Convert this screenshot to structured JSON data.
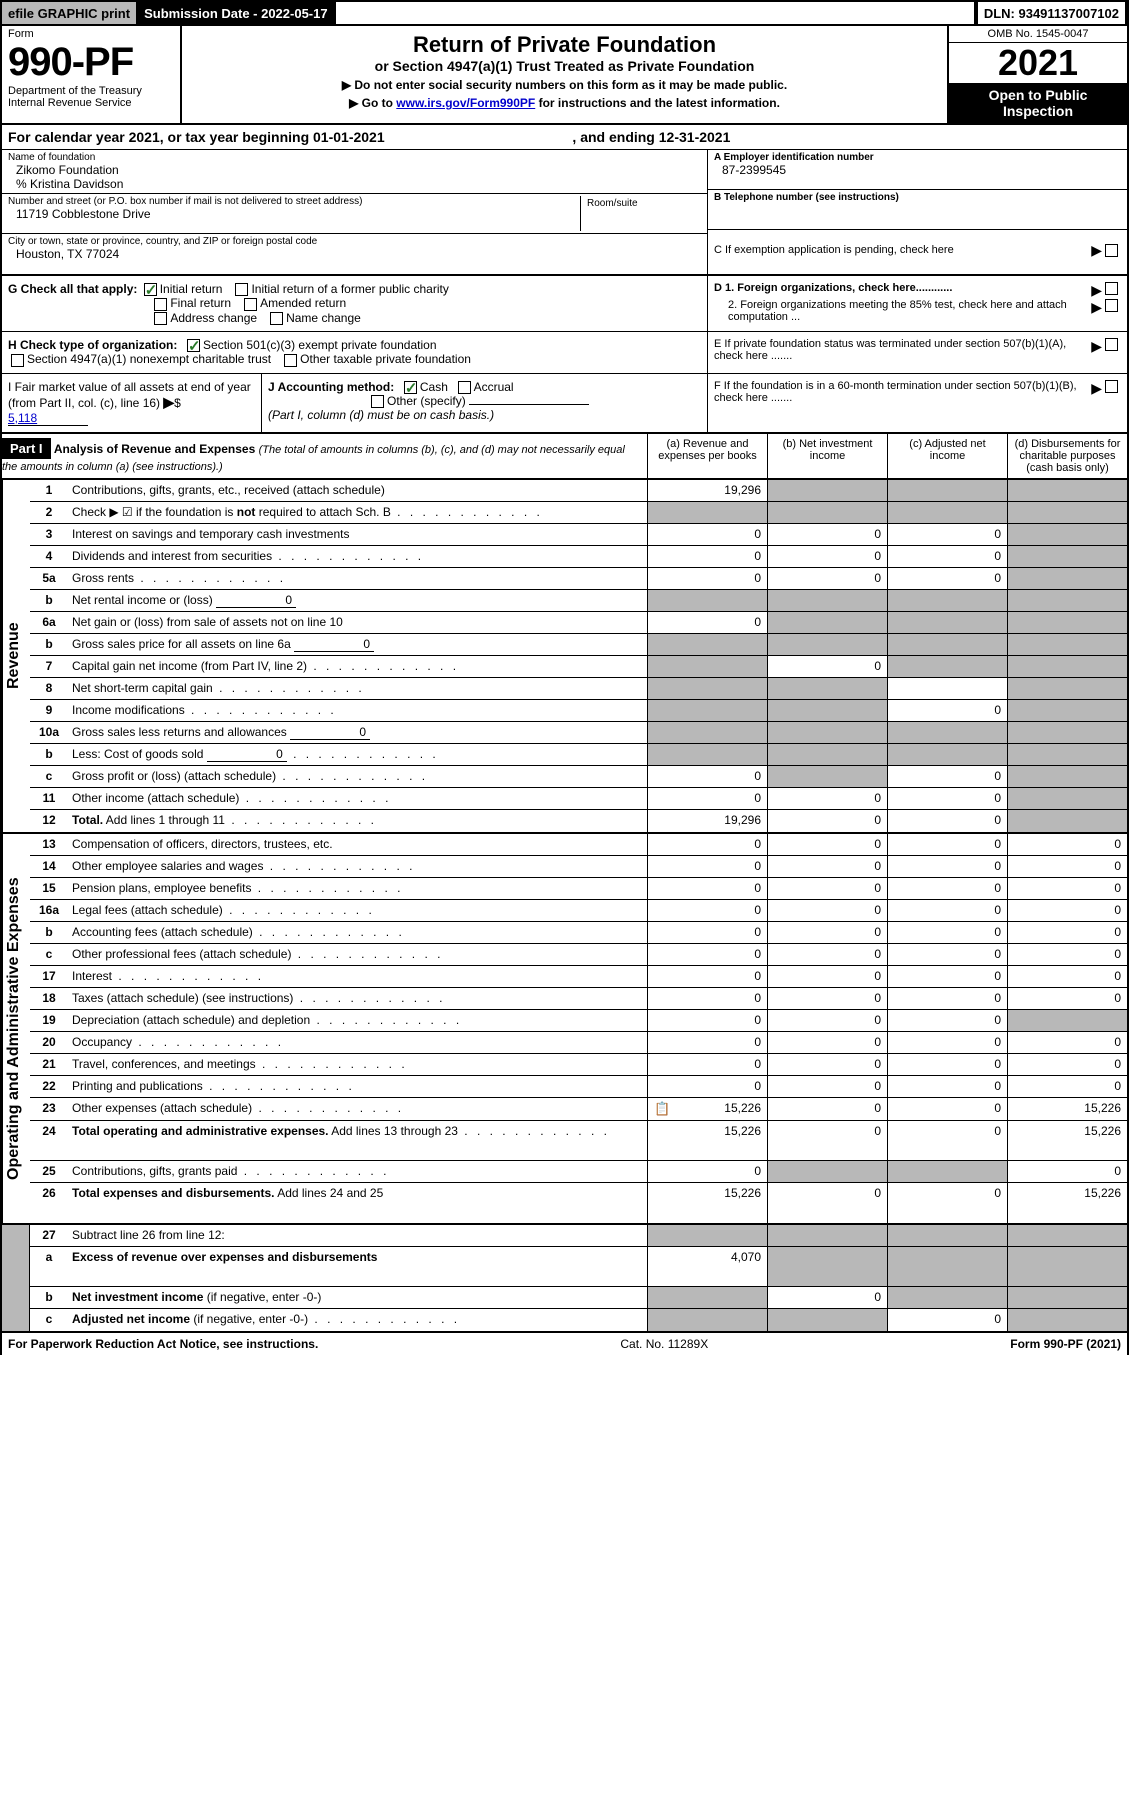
{
  "topbar": {
    "efile": "efile GRAPHIC print",
    "submission_label": "Submission Date - 2022-05-17",
    "dln_label": "DLN: 93491137007102"
  },
  "header": {
    "form_label": "Form",
    "form_no": "990-PF",
    "dept": "Department of the Treasury",
    "irs": "Internal Revenue Service",
    "title": "Return of Private Foundation",
    "subtitle": "or Section 4947(a)(1) Trust Treated as Private Foundation",
    "note1": "▶ Do not enter social security numbers on this form as it may be made public.",
    "note2_pre": "▶ Go to ",
    "note2_link": "www.irs.gov/Form990PF",
    "note2_post": " for instructions and the latest information.",
    "omb": "OMB No. 1545-0047",
    "year": "2021",
    "open": "Open to Public Inspection"
  },
  "calendar": {
    "text_pre": "For calendar year 2021, or tax year beginning ",
    "begin": "01-01-2021",
    "mid": " , and ending ",
    "end": "12-31-2021"
  },
  "info": {
    "name_label": "Name of foundation",
    "name": "Zikomo Foundation",
    "care_of": "% Kristina Davidson",
    "addr_label": "Number and street (or P.O. box number if mail is not delivered to street address)",
    "addr": "11719 Cobblestone Drive",
    "room_label": "Room/suite",
    "city_label": "City or town, state or province, country, and ZIP or foreign postal code",
    "city": "Houston, TX  77024",
    "ein_label": "A Employer identification number",
    "ein": "87-2399545",
    "phone_label": "B Telephone number (see instructions)",
    "c_label": "C If exemption application is pending, check here",
    "d1_label": "D 1. Foreign organizations, check here............",
    "d2_label": "2. Foreign organizations meeting the 85% test, check here and attach computation ...",
    "e_label": "E  If private foundation status was terminated under section 507(b)(1)(A), check here .......",
    "f_label": "F  If the foundation is in a 60-month termination under section 507(b)(1)(B), check here .......",
    "g_label": "G Check all that apply:",
    "g_opts": [
      "Initial return",
      "Initial return of a former public charity",
      "Final return",
      "Amended return",
      "Address change",
      "Name change"
    ],
    "h_label": "H Check type of organization:",
    "h_opts": [
      "Section 501(c)(3) exempt private foundation",
      "Section 4947(a)(1) nonexempt charitable trust",
      "Other taxable private foundation"
    ],
    "i_label": "I Fair market value of all assets at end of year (from Part II, col. (c), line 16)",
    "i_value": "5,118",
    "j_label": "J Accounting method:",
    "j_opts": [
      "Cash",
      "Accrual",
      "Other (specify)"
    ],
    "j_note": "(Part I, column (d) must be on cash basis.)"
  },
  "part1": {
    "label": "Part I",
    "title": "Analysis of Revenue and Expenses",
    "title_note": "(The total of amounts in columns (b), (c), and (d) may not necessarily equal the amounts in column (a) (see instructions).)",
    "cols": {
      "a": "(a)   Revenue and expenses per books",
      "b": "(b)   Net investment income",
      "c": "(c)   Adjusted net income",
      "d": "(d)   Disbursements for charitable purposes (cash basis only)"
    }
  },
  "sections": {
    "revenue": "Revenue",
    "expenses": "Operating and Administrative Expenses"
  },
  "rows": [
    {
      "n": "1",
      "label": "Contributions, gifts, grants, etc., received (attach schedule)",
      "a": "19,296",
      "b": "shaded",
      "c": "shaded",
      "d": "shaded"
    },
    {
      "n": "2",
      "label": "Check ▶ ☑ if the foundation is <b>not</b> required to attach Sch. B",
      "a": "shaded",
      "b": "shaded",
      "c": "shaded",
      "d": "shaded",
      "dots": true
    },
    {
      "n": "3",
      "label": "Interest on savings and temporary cash investments",
      "a": "0",
      "b": "0",
      "c": "0",
      "d": "shaded"
    },
    {
      "n": "4",
      "label": "Dividends and interest from securities",
      "a": "0",
      "b": "0",
      "c": "0",
      "d": "shaded",
      "dots": true
    },
    {
      "n": "5a",
      "label": "Gross rents",
      "a": "0",
      "b": "0",
      "c": "0",
      "d": "shaded",
      "dots": true
    },
    {
      "n": "b",
      "label": "Net rental income or (loss)",
      "inline": "0",
      "a": "shaded",
      "b": "shaded",
      "c": "shaded",
      "d": "shaded"
    },
    {
      "n": "6a",
      "label": "Net gain or (loss) from sale of assets not on line 10",
      "a": "0",
      "b": "shaded",
      "c": "shaded",
      "d": "shaded"
    },
    {
      "n": "b",
      "label": "Gross sales price for all assets on line 6a",
      "inline": "0",
      "a": "shaded",
      "b": "shaded",
      "c": "shaded",
      "d": "shaded"
    },
    {
      "n": "7",
      "label": "Capital gain net income (from Part IV, line 2)",
      "a": "shaded",
      "b": "0",
      "c": "shaded",
      "d": "shaded",
      "dots": true
    },
    {
      "n": "8",
      "label": "Net short-term capital gain",
      "a": "shaded",
      "b": "shaded",
      "c": "",
      "d": "shaded",
      "dots": true
    },
    {
      "n": "9",
      "label": "Income modifications",
      "a": "shaded",
      "b": "shaded",
      "c": "0",
      "d": "shaded",
      "dots": true
    },
    {
      "n": "10a",
      "label": "Gross sales less returns and allowances",
      "inline": "0",
      "a": "shaded",
      "b": "shaded",
      "c": "shaded",
      "d": "shaded"
    },
    {
      "n": "b",
      "label": "Less: Cost of goods sold",
      "inline": "0",
      "a": "shaded",
      "b": "shaded",
      "c": "shaded",
      "d": "shaded",
      "dots": true
    },
    {
      "n": "c",
      "label": "Gross profit or (loss) (attach schedule)",
      "a": "0",
      "b": "shaded",
      "c": "0",
      "d": "shaded",
      "dots": true
    },
    {
      "n": "11",
      "label": "Other income (attach schedule)",
      "a": "0",
      "b": "0",
      "c": "0",
      "d": "shaded",
      "dots": true
    },
    {
      "n": "12",
      "label": "<b>Total.</b> Add lines 1 through 11",
      "a": "19,296",
      "b": "0",
      "c": "0",
      "d": "shaded",
      "dots": true
    }
  ],
  "exp_rows": [
    {
      "n": "13",
      "label": "Compensation of officers, directors, trustees, etc.",
      "a": "0",
      "b": "0",
      "c": "0",
      "d": "0"
    },
    {
      "n": "14",
      "label": "Other employee salaries and wages",
      "a": "0",
      "b": "0",
      "c": "0",
      "d": "0",
      "dots": true
    },
    {
      "n": "15",
      "label": "Pension plans, employee benefits",
      "a": "0",
      "b": "0",
      "c": "0",
      "d": "0",
      "dots": true
    },
    {
      "n": "16a",
      "label": "Legal fees (attach schedule)",
      "a": "0",
      "b": "0",
      "c": "0",
      "d": "0",
      "dots": true
    },
    {
      "n": "b",
      "label": "Accounting fees (attach schedule)",
      "a": "0",
      "b": "0",
      "c": "0",
      "d": "0",
      "dots": true
    },
    {
      "n": "c",
      "label": "Other professional fees (attach schedule)",
      "a": "0",
      "b": "0",
      "c": "0",
      "d": "0",
      "dots": true
    },
    {
      "n": "17",
      "label": "Interest",
      "a": "0",
      "b": "0",
      "c": "0",
      "d": "0",
      "dots": true
    },
    {
      "n": "18",
      "label": "Taxes (attach schedule) (see instructions)",
      "a": "0",
      "b": "0",
      "c": "0",
      "d": "0",
      "dots": true
    },
    {
      "n": "19",
      "label": "Depreciation (attach schedule) and depletion",
      "a": "0",
      "b": "0",
      "c": "0",
      "d": "shaded",
      "dots": true
    },
    {
      "n": "20",
      "label": "Occupancy",
      "a": "0",
      "b": "0",
      "c": "0",
      "d": "0",
      "dots": true
    },
    {
      "n": "21",
      "label": "Travel, conferences, and meetings",
      "a": "0",
      "b": "0",
      "c": "0",
      "d": "0",
      "dots": true
    },
    {
      "n": "22",
      "label": "Printing and publications",
      "a": "0",
      "b": "0",
      "c": "0",
      "d": "0",
      "dots": true
    },
    {
      "n": "23",
      "label": "Other expenses (attach schedule)",
      "icon": "📋",
      "a": "15,226",
      "b": "0",
      "c": "0",
      "d": "15,226",
      "dots": true
    },
    {
      "n": "24",
      "label": "<b>Total operating and administrative expenses.</b> Add lines 13 through 23",
      "a": "15,226",
      "b": "0",
      "c": "0",
      "d": "15,226",
      "dots": true,
      "tall": true
    },
    {
      "n": "25",
      "label": "Contributions, gifts, grants paid",
      "a": "0",
      "b": "shaded",
      "c": "shaded",
      "d": "0",
      "dots": true
    },
    {
      "n": "26",
      "label": "<b>Total expenses and disbursements.</b> Add lines 24 and 25",
      "a": "15,226",
      "b": "0",
      "c": "0",
      "d": "15,226",
      "tall": true
    }
  ],
  "bottom_rows": [
    {
      "n": "27",
      "label": "Subtract line 26 from line 12:",
      "a": "shaded",
      "b": "shaded",
      "c": "shaded",
      "d": "shaded"
    },
    {
      "n": "a",
      "label": "<b>Excess of revenue over expenses and disbursements</b>",
      "a": "4,070",
      "b": "shaded",
      "c": "shaded",
      "d": "shaded",
      "tall": true
    },
    {
      "n": "b",
      "label": "<b>Net investment income</b> (if negative, enter -0-)",
      "a": "shaded",
      "b": "0",
      "c": "shaded",
      "d": "shaded"
    },
    {
      "n": "c",
      "label": "<b>Adjusted net income</b> (if negative, enter -0-)",
      "a": "shaded",
      "b": "shaded",
      "c": "0",
      "d": "shaded",
      "dots": true
    }
  ],
  "footer": {
    "left": "For Paperwork Reduction Act Notice, see instructions.",
    "mid": "Cat. No. 11289X",
    "right": "Form 990-PF (2021)"
  },
  "colors": {
    "shaded": "#b8b8b8",
    "link": "#0000cc",
    "check": "#2a7a2a"
  }
}
